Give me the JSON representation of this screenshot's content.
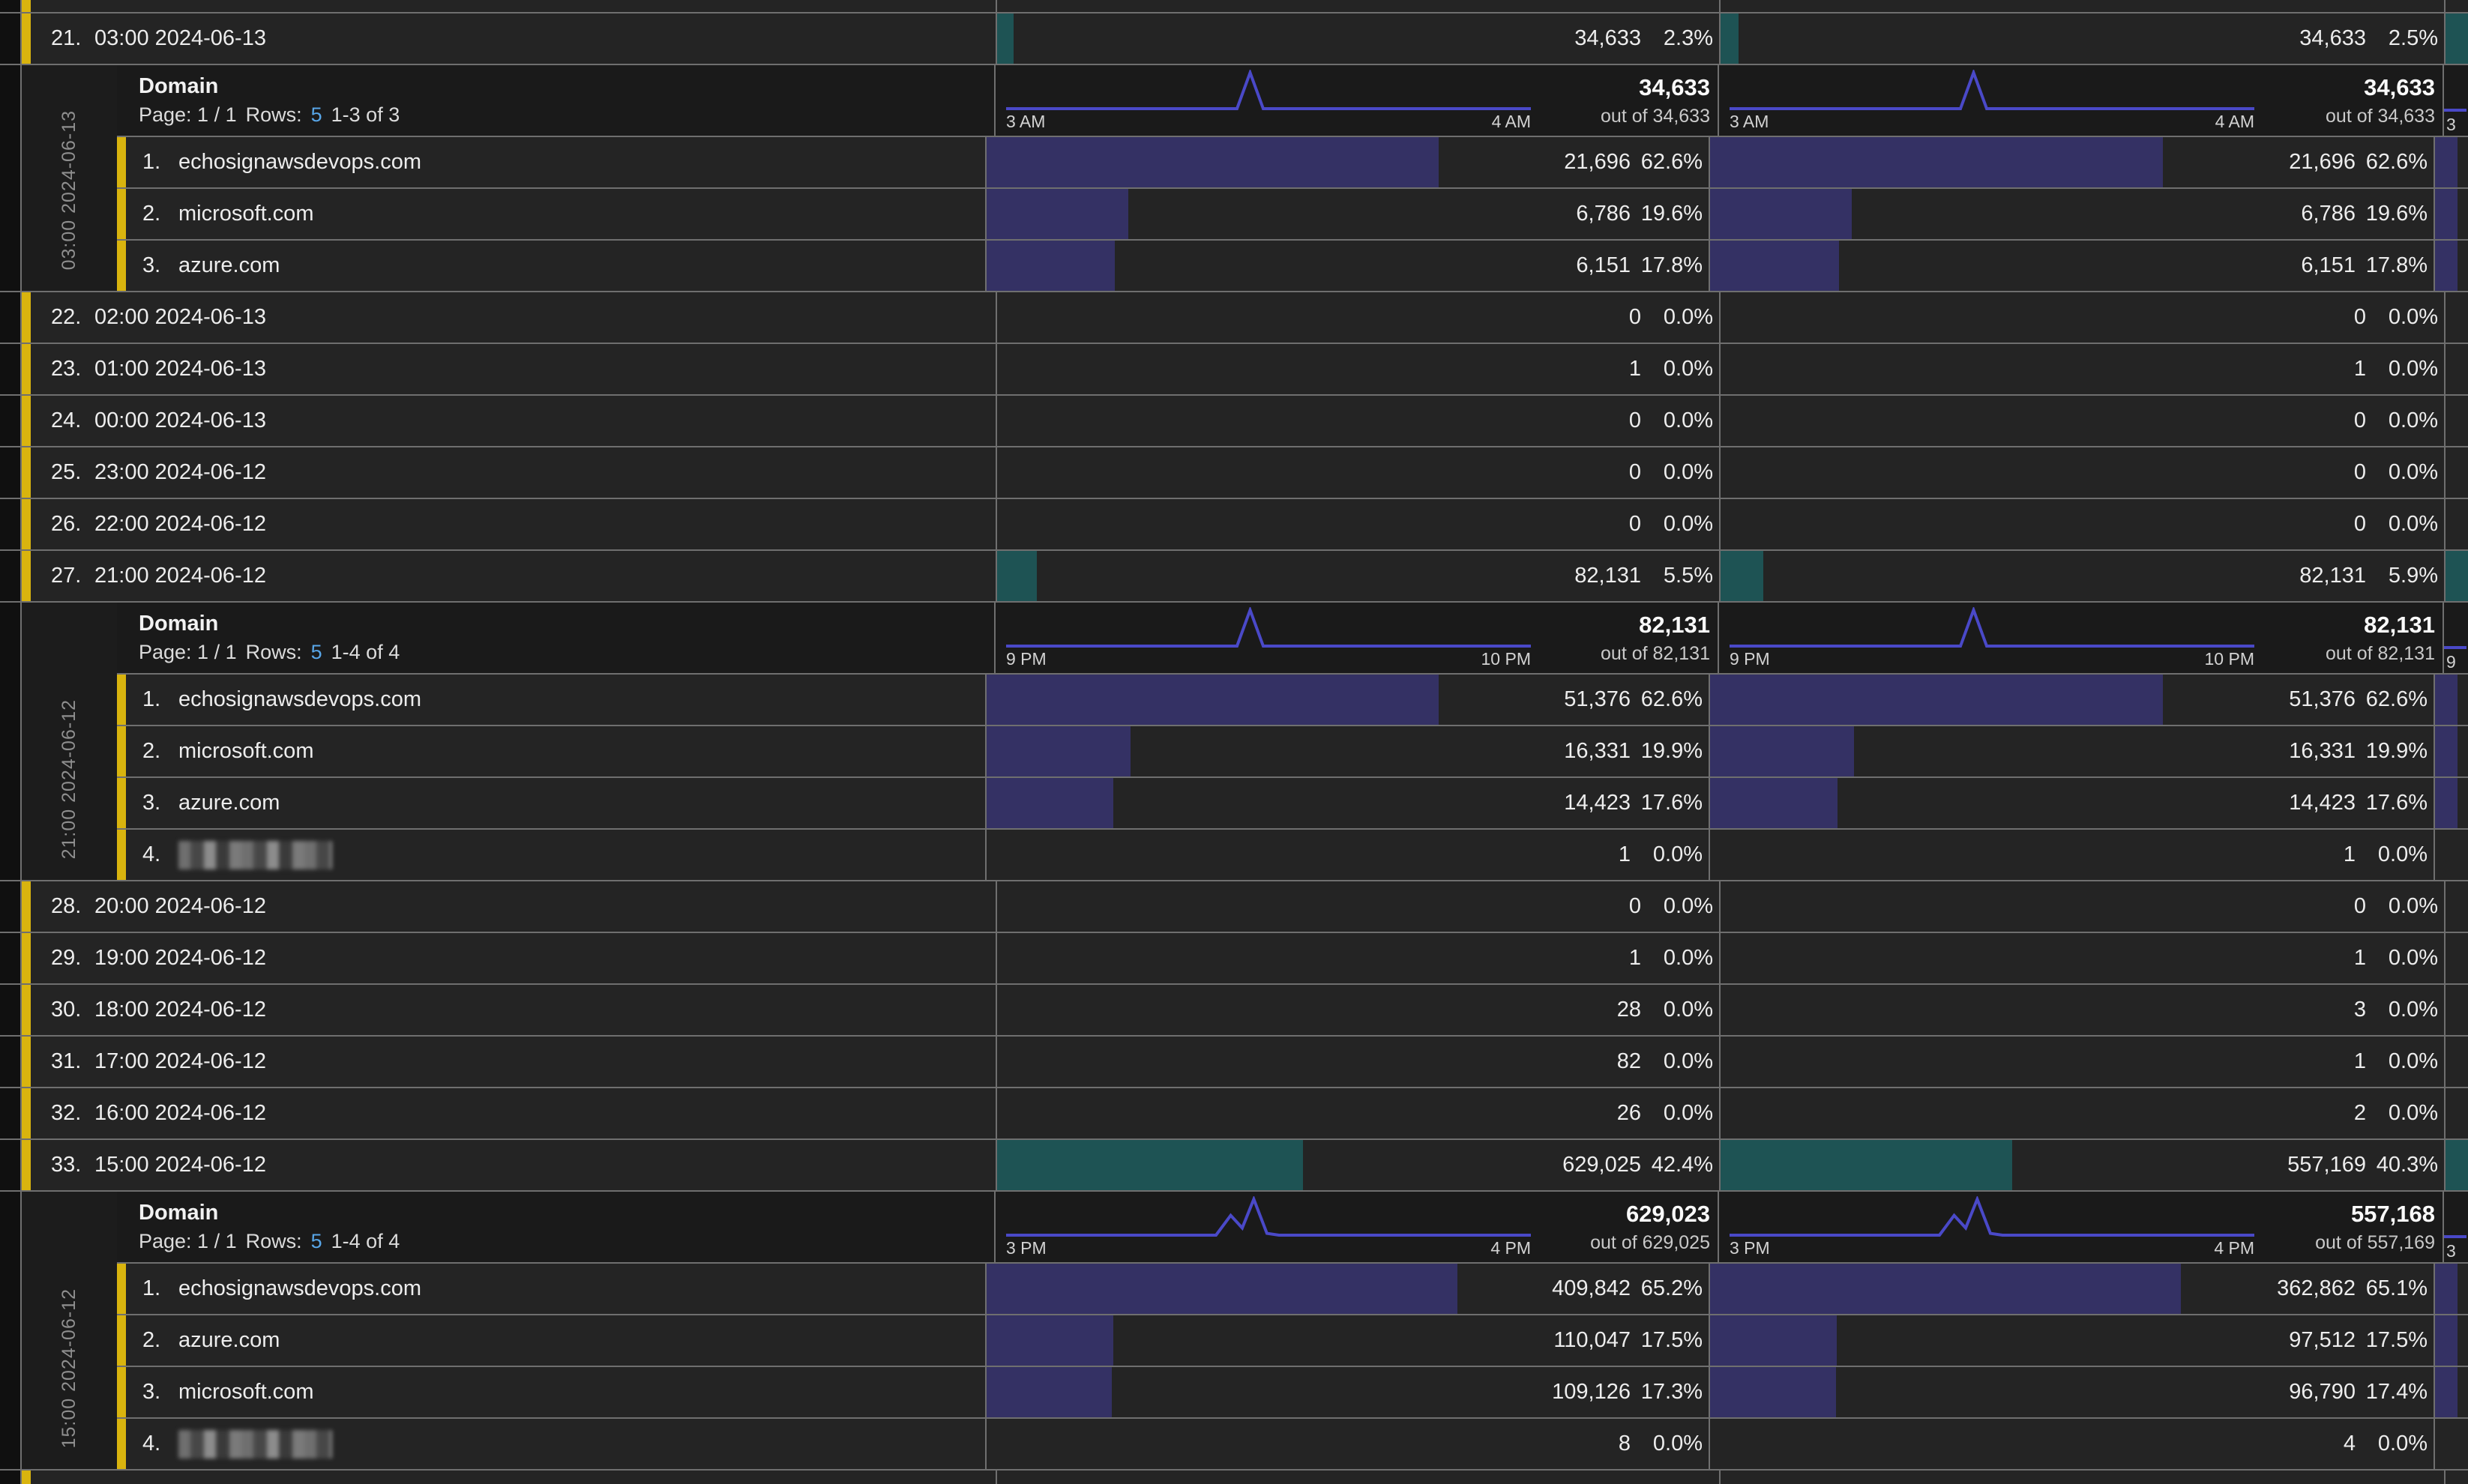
{
  "colors": {
    "background": "#141414",
    "row_bg": "#242424",
    "band_bg": "#1a1a1a",
    "side_label_bg": "#1c1c1c",
    "divider": "#6f6f6f",
    "accent_yellow": "#d9b40e",
    "bar_teal": "#1e5354",
    "bar_purple": "#343164",
    "sparkline": "#4a49c8",
    "rows_count_blue": "#58a6e8",
    "text": "#ededed",
    "muted_text": "#8f8f8f"
  },
  "breakdown_labels": {
    "title": "Domain",
    "page": "Page: 1 / 1",
    "rows": "Rows:",
    "rows_per_page": "5"
  },
  "table": {
    "sections": [
      {
        "type": "sliver_top"
      },
      {
        "type": "main",
        "idx": "21.",
        "label": "03:00 2024-06-13",
        "m": [
          {
            "v": "34,633",
            "p": "2.3%",
            "pct": 2.3
          },
          {
            "v": "34,633",
            "p": "2.5%",
            "pct": 2.5
          }
        ],
        "col3": true
      },
      {
        "type": "breakdown",
        "side_label": "03:00 2024-06-13",
        "pager": "1-3 of 3",
        "cols": [
          {
            "start": "3 AM",
            "end": "4 AM",
            "total": "34,633",
            "outof": "out of 34,633",
            "spark": [
              [
                0,
                1
              ],
              [
                0.44,
                1
              ],
              [
                0.465,
                0
              ],
              [
                0.49,
                1
              ],
              [
                1,
                1
              ]
            ]
          },
          {
            "start": "3 AM",
            "end": "4 AM",
            "total": "34,633",
            "outof": "out of 34,633",
            "spark": [
              [
                0,
                1
              ],
              [
                0.44,
                1
              ],
              [
                0.465,
                0
              ],
              [
                0.49,
                1
              ],
              [
                1,
                1
              ]
            ]
          }
        ],
        "col3_label": "3",
        "rows": [
          {
            "idx": "1.",
            "label": "echosignawsdevops.com",
            "m": [
              {
                "v": "21,696",
                "p": "62.6%",
                "pct": 62.6
              },
              {
                "v": "21,696",
                "p": "62.6%",
                "pct": 62.6
              }
            ]
          },
          {
            "idx": "2.",
            "label": "microsoft.com",
            "m": [
              {
                "v": "6,786",
                "p": "19.6%",
                "pct": 19.6
              },
              {
                "v": "6,786",
                "p": "19.6%",
                "pct": 19.6
              }
            ]
          },
          {
            "idx": "3.",
            "label": "azure.com",
            "m": [
              {
                "v": "6,151",
                "p": "17.8%",
                "pct": 17.8
              },
              {
                "v": "6,151",
                "p": "17.8%",
                "pct": 17.8
              }
            ]
          }
        ]
      },
      {
        "type": "main",
        "idx": "22.",
        "label": "02:00 2024-06-13",
        "m": [
          {
            "v": "0",
            "p": "0.0%",
            "pct": 0
          },
          {
            "v": "0",
            "p": "0.0%",
            "pct": 0
          }
        ]
      },
      {
        "type": "main",
        "idx": "23.",
        "label": "01:00 2024-06-13",
        "m": [
          {
            "v": "1",
            "p": "0.0%",
            "pct": 0
          },
          {
            "v": "1",
            "p": "0.0%",
            "pct": 0
          }
        ]
      },
      {
        "type": "main",
        "idx": "24.",
        "label": "00:00 2024-06-13",
        "m": [
          {
            "v": "0",
            "p": "0.0%",
            "pct": 0
          },
          {
            "v": "0",
            "p": "0.0%",
            "pct": 0
          }
        ]
      },
      {
        "type": "main",
        "idx": "25.",
        "label": "23:00 2024-06-12",
        "m": [
          {
            "v": "0",
            "p": "0.0%",
            "pct": 0
          },
          {
            "v": "0",
            "p": "0.0%",
            "pct": 0
          }
        ]
      },
      {
        "type": "main",
        "idx": "26.",
        "label": "22:00 2024-06-12",
        "m": [
          {
            "v": "0",
            "p": "0.0%",
            "pct": 0
          },
          {
            "v": "0",
            "p": "0.0%",
            "pct": 0
          }
        ]
      },
      {
        "type": "main",
        "idx": "27.",
        "label": "21:00 2024-06-12",
        "m": [
          {
            "v": "82,131",
            "p": "5.5%",
            "pct": 5.5
          },
          {
            "v": "82,131",
            "p": "5.9%",
            "pct": 5.9
          }
        ],
        "col3": true
      },
      {
        "type": "breakdown",
        "side_label": "21:00 2024-06-12",
        "pager": "1-4 of 4",
        "cols": [
          {
            "start": "9 PM",
            "end": "10 PM",
            "total": "82,131",
            "outof": "out of 82,131",
            "spark": [
              [
                0,
                1
              ],
              [
                0.44,
                1
              ],
              [
                0.465,
                0
              ],
              [
                0.49,
                1
              ],
              [
                1,
                1
              ]
            ]
          },
          {
            "start": "9 PM",
            "end": "10 PM",
            "total": "82,131",
            "outof": "out of 82,131",
            "spark": [
              [
                0,
                1
              ],
              [
                0.44,
                1
              ],
              [
                0.465,
                0
              ],
              [
                0.49,
                1
              ],
              [
                1,
                1
              ]
            ]
          }
        ],
        "col3_label": "9",
        "rows": [
          {
            "idx": "1.",
            "label": "echosignawsdevops.com",
            "m": [
              {
                "v": "51,376",
                "p": "62.6%",
                "pct": 62.6
              },
              {
                "v": "51,376",
                "p": "62.6%",
                "pct": 62.6
              }
            ]
          },
          {
            "idx": "2.",
            "label": "microsoft.com",
            "m": [
              {
                "v": "16,331",
                "p": "19.9%",
                "pct": 19.9
              },
              {
                "v": "16,331",
                "p": "19.9%",
                "pct": 19.9
              }
            ]
          },
          {
            "idx": "3.",
            "label": "azure.com",
            "m": [
              {
                "v": "14,423",
                "p": "17.6%",
                "pct": 17.6
              },
              {
                "v": "14,423",
                "p": "17.6%",
                "pct": 17.6
              }
            ]
          },
          {
            "idx": "4.",
            "label": "",
            "redacted": true,
            "m": [
              {
                "v": "1",
                "p": "0.0%",
                "pct": 0
              },
              {
                "v": "1",
                "p": "0.0%",
                "pct": 0
              }
            ]
          }
        ]
      },
      {
        "type": "main",
        "idx": "28.",
        "label": "20:00 2024-06-12",
        "m": [
          {
            "v": "0",
            "p": "0.0%",
            "pct": 0
          },
          {
            "v": "0",
            "p": "0.0%",
            "pct": 0
          }
        ]
      },
      {
        "type": "main",
        "idx": "29.",
        "label": "19:00 2024-06-12",
        "m": [
          {
            "v": "1",
            "p": "0.0%",
            "pct": 0
          },
          {
            "v": "1",
            "p": "0.0%",
            "pct": 0
          }
        ]
      },
      {
        "type": "main",
        "idx": "30.",
        "label": "18:00 2024-06-12",
        "m": [
          {
            "v": "28",
            "p": "0.0%",
            "pct": 0
          },
          {
            "v": "3",
            "p": "0.0%",
            "pct": 0
          }
        ]
      },
      {
        "type": "main",
        "idx": "31.",
        "label": "17:00 2024-06-12",
        "m": [
          {
            "v": "82",
            "p": "0.0%",
            "pct": 0
          },
          {
            "v": "1",
            "p": "0.0%",
            "pct": 0
          }
        ]
      },
      {
        "type": "main",
        "idx": "32.",
        "label": "16:00 2024-06-12",
        "m": [
          {
            "v": "26",
            "p": "0.0%",
            "pct": 0
          },
          {
            "v": "2",
            "p": "0.0%",
            "pct": 0
          }
        ]
      },
      {
        "type": "main",
        "idx": "33.",
        "label": "15:00 2024-06-12",
        "m": [
          {
            "v": "629,025",
            "p": "42.4%",
            "pct": 42.4
          },
          {
            "v": "557,169",
            "p": "40.3%",
            "pct": 40.3
          }
        ],
        "col3": true
      },
      {
        "type": "breakdown",
        "side_label": "15:00 2024-06-12",
        "pager": "1-4 of 4",
        "cols": [
          {
            "start": "3 PM",
            "end": "4 PM",
            "total": "629,023",
            "outof": "out of 629,025",
            "spark": [
              [
                0,
                1
              ],
              [
                0.4,
                1
              ],
              [
                0.428,
                0.45
              ],
              [
                0.45,
                0.8
              ],
              [
                0.472,
                0
              ],
              [
                0.497,
                0.95
              ],
              [
                0.52,
                1
              ],
              [
                1,
                1
              ]
            ]
          },
          {
            "start": "3 PM",
            "end": "4 PM",
            "total": "557,168",
            "outof": "out of 557,169",
            "spark": [
              [
                0,
                1
              ],
              [
                0.4,
                1
              ],
              [
                0.428,
                0.45
              ],
              [
                0.45,
                0.8
              ],
              [
                0.472,
                0
              ],
              [
                0.497,
                0.95
              ],
              [
                0.52,
                1
              ],
              [
                1,
                1
              ]
            ]
          }
        ],
        "col3_label": "3",
        "rows": [
          {
            "idx": "1.",
            "label": "echosignawsdevops.com",
            "m": [
              {
                "v": "409,842",
                "p": "65.2%",
                "pct": 65.2
              },
              {
                "v": "362,862",
                "p": "65.1%",
                "pct": 65.1
              }
            ]
          },
          {
            "idx": "2.",
            "label": "azure.com",
            "m": [
              {
                "v": "110,047",
                "p": "17.5%",
                "pct": 17.5
              },
              {
                "v": "97,512",
                "p": "17.5%",
                "pct": 17.5
              }
            ]
          },
          {
            "idx": "3.",
            "label": "microsoft.com",
            "m": [
              {
                "v": "109,126",
                "p": "17.3%",
                "pct": 17.3
              },
              {
                "v": "96,790",
                "p": "17.4%",
                "pct": 17.4
              }
            ]
          },
          {
            "idx": "4.",
            "label": "",
            "redacted": true,
            "m": [
              {
                "v": "8",
                "p": "0.0%",
                "pct": 0
              },
              {
                "v": "4",
                "p": "0.0%",
                "pct": 0
              }
            ]
          }
        ]
      },
      {
        "type": "sliver_bottom"
      }
    ]
  }
}
